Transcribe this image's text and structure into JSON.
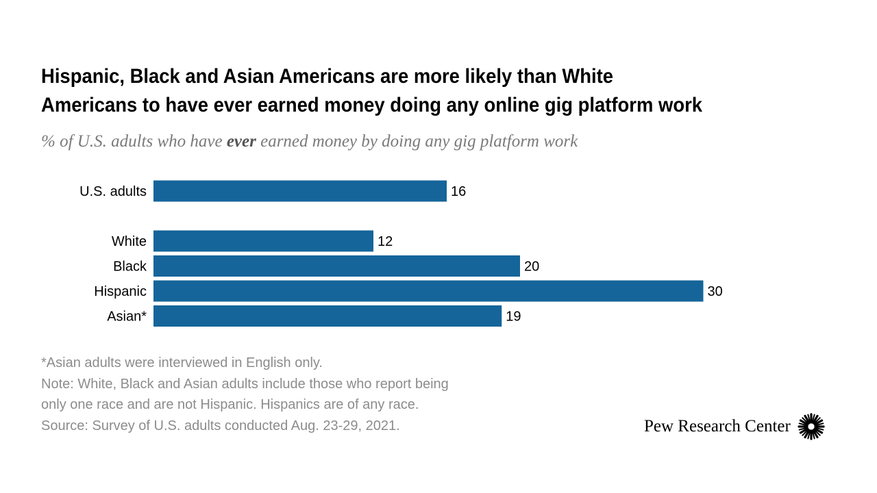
{
  "chart_data": {
    "type": "bar",
    "orientation": "horizontal",
    "title_line1": "Hispanic, Black and Asian Americans are more likely than White",
    "title_line2": "Americans to have ever earned money doing any online gig platform work",
    "subtitle_before": "% of U.S. adults who have",
    "subtitle_emphasis": "ever",
    "subtitle_after": "earned money by doing any gig platform work",
    "categories": [
      "U.S. adults",
      "White",
      "Black",
      "Hispanic",
      "Asian*"
    ],
    "values": [
      16,
      12,
      20,
      30,
      19
    ],
    "groups": [
      [
        "U.S. adults"
      ],
      [
        "White",
        "Black",
        "Hispanic",
        "Asian*"
      ]
    ],
    "bar_color": "#15659a",
    "xlim": [
      0,
      30
    ],
    "grid": false,
    "data_labels": true
  },
  "notes": [
    "*Asian adults were interviewed in English only.",
    "Note: White, Black and Asian adults include those who report being",
    "only one race and are not Hispanic. Hispanics are of any race.",
    "Source: Survey of U.S. adults conducted Aug. 23-29, 2021."
  ],
  "brand": {
    "name": "Pew Research Center",
    "logo_icon": "pew-sunburst-icon"
  }
}
